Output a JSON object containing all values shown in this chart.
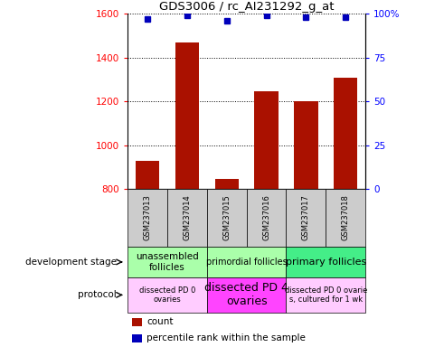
{
  "title": "GDS3006 / rc_AI231292_g_at",
  "samples": [
    "GSM237013",
    "GSM237014",
    "GSM237015",
    "GSM237016",
    "GSM237017",
    "GSM237018"
  ],
  "counts": [
    930,
    1470,
    848,
    1245,
    1200,
    1310
  ],
  "percentile_ranks": [
    97,
    99,
    96,
    99,
    98,
    98
  ],
  "ylim_left": [
    800,
    1600
  ],
  "ylim_right": [
    0,
    100
  ],
  "yticks_left": [
    800,
    1000,
    1200,
    1400,
    1600
  ],
  "yticks_right": [
    0,
    25,
    50,
    75,
    100
  ],
  "ytick_right_labels": [
    "0",
    "25",
    "50",
    "75",
    "100%"
  ],
  "bar_color": "#aa1100",
  "dot_color": "#0000bb",
  "dev_stage_groups": [
    {
      "label": "unassembled\nfollicles",
      "cols": [
        0,
        1
      ],
      "color": "#aaffaa"
    },
    {
      "label": "primordial follicles",
      "cols": [
        2,
        3
      ],
      "color": "#aaffaa"
    },
    {
      "label": "primary follicles",
      "cols": [
        4,
        5
      ],
      "color": "#44dd88"
    }
  ],
  "protocol_groups": [
    {
      "label": "dissected PD 0\novaries",
      "cols": [
        0,
        1
      ],
      "color": "#ffccff"
    },
    {
      "label": "dissected PD 4\novaries",
      "cols": [
        2,
        3
      ],
      "color": "#ff44ff"
    },
    {
      "label": "dissected PD 0 ovarie\ns, cultured for 1 wk",
      "cols": [
        4,
        5
      ],
      "color": "#ffccff"
    }
  ],
  "sample_box_color": "#cccccc",
  "dev_stage_label": "development stage",
  "protocol_label": "protocol",
  "legend_count_label": "count",
  "legend_percentile_label": "percentile rank within the sample"
}
